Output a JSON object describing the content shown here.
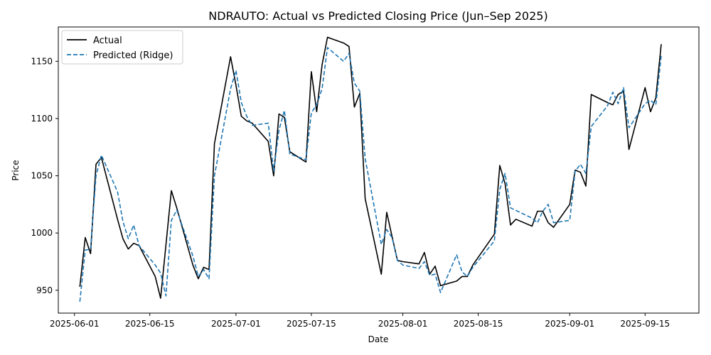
{
  "chart_data": {
    "type": "line",
    "title": "NDRAUTO: Actual vs Predicted Closing Price (Jun–Sep 2025)",
    "xlabel": "Date",
    "ylabel": "Price",
    "xlim": [
      "2025-05-29",
      "2025-09-25"
    ],
    "ylim": [
      930,
      1180
    ],
    "xticks": [
      "2025-06-01",
      "2025-06-15",
      "2025-07-01",
      "2025-07-15",
      "2025-08-01",
      "2025-08-15",
      "2025-09-01",
      "2025-09-15"
    ],
    "yticks": [
      950,
      1000,
      1050,
      1100,
      1150
    ],
    "grid": false,
    "legend_position": "upper-left",
    "series": [
      {
        "name": "Actual",
        "color": "#000000",
        "style": "solid",
        "points": [
          [
            "2025-06-02",
            953
          ],
          [
            "2025-06-03",
            996
          ],
          [
            "2025-06-04",
            982
          ],
          [
            "2025-06-05",
            1060
          ],
          [
            "2025-06-06",
            1066
          ],
          [
            "2025-06-09",
            1012
          ],
          [
            "2025-06-10",
            995
          ],
          [
            "2025-06-11",
            986
          ],
          [
            "2025-06-12",
            991
          ],
          [
            "2025-06-13",
            989
          ],
          [
            "2025-06-16",
            962
          ],
          [
            "2025-06-17",
            943
          ],
          [
            "2025-06-19",
            1037
          ],
          [
            "2025-06-20",
            1022
          ],
          [
            "2025-06-23",
            972
          ],
          [
            "2025-06-24",
            960
          ],
          [
            "2025-06-25",
            970
          ],
          [
            "2025-06-26",
            968
          ],
          [
            "2025-06-27",
            1078
          ],
          [
            "2025-06-30",
            1154
          ],
          [
            "2025-07-01",
            1129
          ],
          [
            "2025-07-02",
            1102
          ],
          [
            "2025-07-03",
            1098
          ],
          [
            "2025-07-04",
            1096
          ],
          [
            "2025-07-07",
            1080
          ],
          [
            "2025-07-08",
            1050
          ],
          [
            "2025-07-09",
            1104
          ],
          [
            "2025-07-10",
            1101
          ],
          [
            "2025-07-11",
            1071
          ],
          [
            "2025-07-14",
            1062
          ],
          [
            "2025-07-15",
            1141
          ],
          [
            "2025-07-16",
            1106
          ],
          [
            "2025-07-17",
            1147
          ],
          [
            "2025-07-18",
            1171
          ],
          [
            "2025-07-21",
            1166
          ],
          [
            "2025-07-22",
            1163
          ],
          [
            "2025-07-23",
            1110
          ],
          [
            "2025-07-24",
            1122
          ],
          [
            "2025-07-25",
            1030
          ],
          [
            "2025-07-28",
            964
          ],
          [
            "2025-07-29",
            1018
          ],
          [
            "2025-07-30",
            997
          ],
          [
            "2025-07-31",
            976
          ],
          [
            "2025-08-01",
            975
          ],
          [
            "2025-08-04",
            973
          ],
          [
            "2025-08-05",
            983
          ],
          [
            "2025-08-06",
            964
          ],
          [
            "2025-08-07",
            971
          ],
          [
            "2025-08-08",
            954
          ],
          [
            "2025-08-11",
            958
          ],
          [
            "2025-08-12",
            962
          ],
          [
            "2025-08-13",
            962
          ],
          [
            "2025-08-14",
            972
          ],
          [
            "2025-08-18",
            999
          ],
          [
            "2025-08-19",
            1059
          ],
          [
            "2025-08-20",
            1043
          ],
          [
            "2025-08-21",
            1007
          ],
          [
            "2025-08-22",
            1012
          ],
          [
            "2025-08-25",
            1006
          ],
          [
            "2025-08-26",
            1019
          ],
          [
            "2025-08-27",
            1019
          ],
          [
            "2025-08-28",
            1009
          ],
          [
            "2025-08-29",
            1005
          ],
          [
            "2025-09-01",
            1025
          ],
          [
            "2025-09-02",
            1055
          ],
          [
            "2025-09-03",
            1053
          ],
          [
            "2025-09-04",
            1041
          ],
          [
            "2025-09-05",
            1121
          ],
          [
            "2025-09-08",
            1114
          ],
          [
            "2025-09-09",
            1112
          ],
          [
            "2025-09-10",
            1121
          ],
          [
            "2025-09-11",
            1124
          ],
          [
            "2025-09-12",
            1073
          ],
          [
            "2025-09-15",
            1127
          ],
          [
            "2025-09-16",
            1106
          ],
          [
            "2025-09-17",
            1118
          ],
          [
            "2025-09-18",
            1165
          ]
        ]
      },
      {
        "name": "Predicted (Ridge)",
        "color": "#1f77b4",
        "style": "dashed",
        "points": [
          [
            "2025-06-02",
            940
          ],
          [
            "2025-06-03",
            985
          ],
          [
            "2025-06-04",
            986
          ],
          [
            "2025-06-05",
            1050
          ],
          [
            "2025-06-06",
            1068
          ],
          [
            "2025-06-09",
            1036
          ],
          [
            "2025-06-10",
            1010
          ],
          [
            "2025-06-11",
            995
          ],
          [
            "2025-06-12",
            1007
          ],
          [
            "2025-06-13",
            989
          ],
          [
            "2025-06-16",
            972
          ],
          [
            "2025-06-17",
            965
          ],
          [
            "2025-06-18",
            945
          ],
          [
            "2025-06-19",
            1011
          ],
          [
            "2025-06-20",
            1020
          ],
          [
            "2025-06-23",
            980
          ],
          [
            "2025-06-24",
            962
          ],
          [
            "2025-06-25",
            968
          ],
          [
            "2025-06-26",
            960
          ],
          [
            "2025-06-27",
            1050
          ],
          [
            "2025-06-30",
            1126
          ],
          [
            "2025-07-01",
            1142
          ],
          [
            "2025-07-02",
            1114
          ],
          [
            "2025-07-03",
            1102
          ],
          [
            "2025-07-04",
            1094
          ],
          [
            "2025-07-07",
            1096
          ],
          [
            "2025-07-08",
            1054
          ],
          [
            "2025-07-09",
            1090
          ],
          [
            "2025-07-10",
            1107
          ],
          [
            "2025-07-11",
            1069
          ],
          [
            "2025-07-14",
            1064
          ],
          [
            "2025-07-15",
            1105
          ],
          [
            "2025-07-16",
            1112
          ],
          [
            "2025-07-17",
            1126
          ],
          [
            "2025-07-18",
            1162
          ],
          [
            "2025-07-21",
            1150
          ],
          [
            "2025-07-22",
            1157
          ],
          [
            "2025-07-23",
            1131
          ],
          [
            "2025-07-24",
            1124
          ],
          [
            "2025-07-25",
            1065
          ],
          [
            "2025-07-28",
            990
          ],
          [
            "2025-07-29",
            1003
          ],
          [
            "2025-07-30",
            996
          ],
          [
            "2025-07-31",
            976
          ],
          [
            "2025-08-01",
            972
          ],
          [
            "2025-08-04",
            969
          ],
          [
            "2025-08-05",
            975
          ],
          [
            "2025-08-06",
            963
          ],
          [
            "2025-08-07",
            964
          ],
          [
            "2025-08-08",
            948
          ],
          [
            "2025-08-11",
            981
          ],
          [
            "2025-08-12",
            966
          ],
          [
            "2025-08-13",
            962
          ],
          [
            "2025-08-14",
            970
          ],
          [
            "2025-08-18",
            993
          ],
          [
            "2025-08-19",
            1038
          ],
          [
            "2025-08-20",
            1052
          ],
          [
            "2025-08-21",
            1022
          ],
          [
            "2025-08-25",
            1013
          ],
          [
            "2025-08-26",
            1009
          ],
          [
            "2025-08-27",
            1019
          ],
          [
            "2025-08-28",
            1025
          ],
          [
            "2025-08-29",
            1009
          ],
          [
            "2025-09-01",
            1011
          ],
          [
            "2025-09-02",
            1054
          ],
          [
            "2025-09-03",
            1060
          ],
          [
            "2025-09-04",
            1052
          ],
          [
            "2025-09-05",
            1093
          ],
          [
            "2025-09-08",
            1111
          ],
          [
            "2025-09-09",
            1123
          ],
          [
            "2025-09-10",
            1113
          ],
          [
            "2025-09-11",
            1127
          ],
          [
            "2025-09-12",
            1092
          ],
          [
            "2025-09-15",
            1113
          ],
          [
            "2025-09-16",
            1116
          ],
          [
            "2025-09-17",
            1112
          ],
          [
            "2025-09-18",
            1155
          ]
        ]
      }
    ]
  }
}
